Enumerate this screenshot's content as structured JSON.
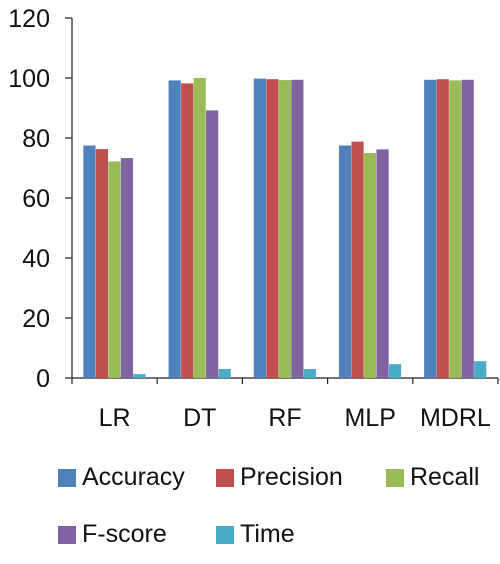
{
  "chart_data": {
    "type": "bar",
    "title": "",
    "xlabel": "",
    "ylabel": "",
    "ylim": [
      0,
      120
    ],
    "yticks": [
      0,
      20,
      40,
      60,
      80,
      100,
      120
    ],
    "grid": false,
    "legend_position": "bottom",
    "categories": [
      "LR",
      "DT",
      "RF",
      "MLP",
      "MDRL"
    ],
    "series": [
      {
        "name": "Accuracy",
        "color": "#4f81bd",
        "values": [
          77.5,
          99.2,
          99.8,
          77.5,
          99.4
        ]
      },
      {
        "name": "Precision",
        "color": "#c0504d",
        "values": [
          76.3,
          98.2,
          99.6,
          78.8,
          99.6
        ]
      },
      {
        "name": "Recall",
        "color": "#9bbb59",
        "values": [
          72.2,
          100,
          99.3,
          75.0,
          99.2
        ]
      },
      {
        "name": "F-score",
        "color": "#8064a2",
        "values": [
          73.3,
          89.2,
          99.4,
          76.2,
          99.4
        ]
      },
      {
        "name": "Time",
        "color": "#4bacc6",
        "values": [
          1.3,
          3.0,
          3.0,
          4.6,
          5.6
        ]
      }
    ]
  }
}
